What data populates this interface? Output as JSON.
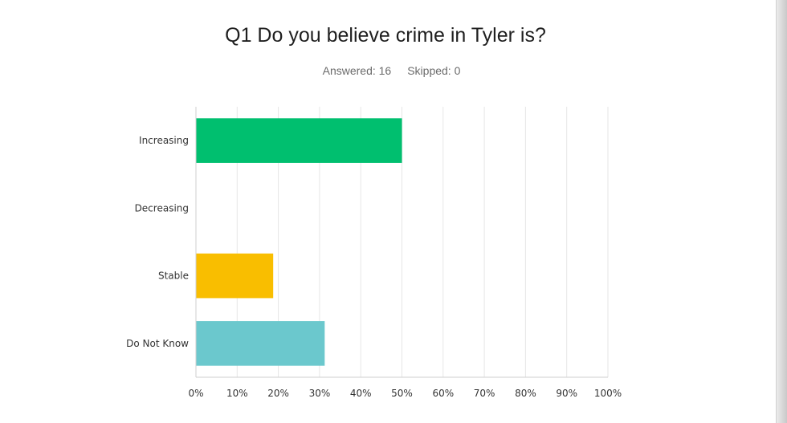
{
  "header": {
    "title": "Q1 Do you believe crime in Tyler is?",
    "answered_label": "Answered: 16",
    "skipped_label": "Skipped: 0"
  },
  "chart_data": {
    "type": "bar",
    "orientation": "horizontal",
    "title": "Q1 Do you believe crime in Tyler is?",
    "categories": [
      "Increasing",
      "Decreasing",
      "Stable",
      "Do Not Know"
    ],
    "values": [
      50,
      0,
      18.75,
      31.25
    ],
    "colors": [
      "#00bf6f",
      "#6bc8cd",
      "#f9be00",
      "#6bc8cd"
    ],
    "xlim": [
      0,
      100
    ],
    "xticks": [
      "0%",
      "10%",
      "20%",
      "30%",
      "40%",
      "50%",
      "60%",
      "70%",
      "80%",
      "90%",
      "100%"
    ],
    "grid": true,
    "xlabel": "",
    "ylabel": ""
  }
}
